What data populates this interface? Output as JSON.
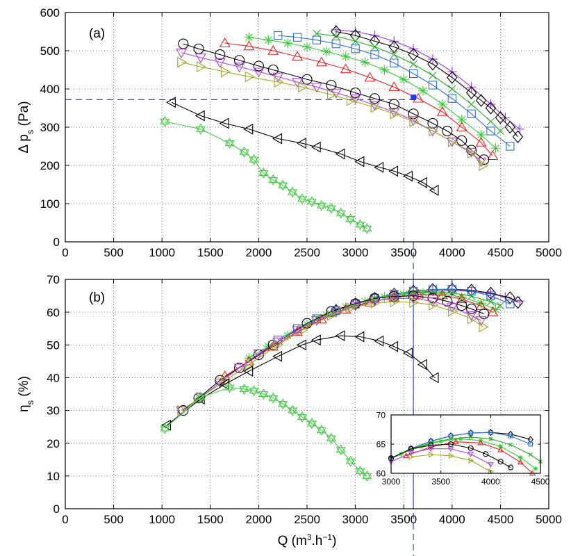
{
  "chart_data": [
    {
      "type": "line",
      "panel_label": "(a)",
      "ylabel": {
        "main": "Δ p",
        "sub": "s",
        "unit": " (Pa)"
      },
      "xlabel": "",
      "xlim": [
        0,
        5000
      ],
      "ylim": [
        0,
        600
      ],
      "xticks": [
        "0",
        "500",
        "1000",
        "1500",
        "2000",
        "2500",
        "3000",
        "3500",
        "4000",
        "4500",
        "5000"
      ],
      "yticks": [
        "0",
        "100",
        "200",
        "300",
        "400",
        "500",
        "600"
      ],
      "grid": true,
      "reference_lines": {
        "x": 3600,
        "y": 372
      },
      "highlight_point": {
        "x": 3600,
        "y": 378,
        "color": "#1a3cff"
      },
      "series": [
        {
          "name": "plus",
          "marker": "plus",
          "color": "#9b30d9",
          "x": [
            2800,
            3000,
            3200,
            3400,
            3600,
            3800,
            4000,
            4200,
            4400,
            4550,
            4700
          ],
          "y": [
            555,
            550,
            540,
            525,
            505,
            478,
            445,
            405,
            360,
            325,
            295
          ]
        },
        {
          "name": "diamond",
          "marker": "diamond",
          "color": "#000000",
          "x": [
            2800,
            3000,
            3200,
            3400,
            3600,
            3800,
            4000,
            4200,
            4300,
            4400,
            4500,
            4600,
            4680
          ],
          "y": [
            550,
            540,
            525,
            510,
            490,
            465,
            430,
            390,
            370,
            350,
            325,
            300,
            275
          ]
        },
        {
          "name": "square",
          "marker": "square",
          "color": "#2a6fdb",
          "x": [
            2200,
            2400,
            2600,
            2800,
            3000,
            3200,
            3400,
            3600,
            3800,
            4000,
            4200,
            4400,
            4600
          ],
          "y": [
            540,
            535,
            528,
            518,
            505,
            490,
            468,
            440,
            410,
            375,
            335,
            290,
            250
          ]
        },
        {
          "name": "cross",
          "marker": "x",
          "color": "#22aa22",
          "x": [
            2600,
            2800,
            3000,
            3200,
            3400,
            3600,
            3800,
            4000,
            4200,
            4400,
            4500
          ],
          "y": [
            545,
            538,
            525,
            510,
            490,
            465,
            435,
            400,
            360,
            315,
            290
          ]
        },
        {
          "name": "asterisk",
          "marker": "asterisk",
          "color": "#33cc33",
          "x": [
            1900,
            2100,
            2300,
            2500,
            2700,
            2900,
            3100,
            3300,
            3500,
            3700,
            3900,
            4100,
            4300,
            4450
          ],
          "y": [
            535,
            528,
            520,
            510,
            498,
            485,
            470,
            450,
            425,
            395,
            360,
            320,
            280,
            245
          ]
        },
        {
          "name": "triangle-up",
          "marker": "triangle-up",
          "color": "#e82020",
          "x": [
            1650,
            1900,
            2150,
            2400,
            2650,
            2900,
            3150,
            3400,
            3650,
            3900,
            4100,
            4300,
            4420
          ],
          "y": [
            520,
            512,
            500,
            485,
            470,
            452,
            430,
            405,
            375,
            340,
            300,
            260,
            225
          ]
        },
        {
          "name": "circle",
          "marker": "circle",
          "color": "#000000",
          "x": [
            1220,
            1380,
            1600,
            1800,
            2000,
            2150,
            2500,
            2750,
            3000,
            3200,
            3400,
            3600,
            3800,
            3950,
            4100,
            4200,
            4330
          ],
          "y": [
            518,
            505,
            490,
            475,
            460,
            450,
            425,
            410,
            390,
            375,
            360,
            335,
            310,
            290,
            265,
            240,
            215
          ]
        },
        {
          "name": "triangle-down",
          "marker": "triangle-down",
          "color": "#b040e0",
          "x": [
            1200,
            1400,
            1600,
            1800,
            2000,
            2200,
            2400,
            2600,
            2800,
            3000,
            3200,
            3400,
            3600,
            3800,
            4000,
            4200,
            4300
          ],
          "y": [
            495,
            482,
            470,
            458,
            445,
            432,
            418,
            405,
            390,
            375,
            358,
            340,
            318,
            290,
            262,
            235,
            210
          ]
        },
        {
          "name": "triangle-right",
          "marker": "triangle-right",
          "color": "#99aa22",
          "x": [
            1200,
            1400,
            1650,
            1900,
            2200,
            2450,
            2750,
            2950,
            3200,
            3400,
            3600,
            3800,
            4000,
            4200,
            4320
          ],
          "y": [
            470,
            458,
            445,
            432,
            418,
            405,
            385,
            370,
            352,
            335,
            315,
            290,
            262,
            232,
            200
          ]
        },
        {
          "name": "triangle-left",
          "marker": "triangle-left",
          "color": "#000000",
          "x": [
            1100,
            1400,
            1650,
            1900,
            2200,
            2450,
            2600,
            2850,
            3050,
            3250,
            3400,
            3550,
            3700,
            3820
          ],
          "y": [
            365,
            330,
            310,
            295,
            270,
            258,
            248,
            230,
            210,
            195,
            185,
            172,
            155,
            135
          ]
        },
        {
          "name": "hexagram",
          "marker": "star",
          "color": "#44cc44",
          "x": [
            1030,
            1400,
            1700,
            1850,
            1950,
            2050,
            2150,
            2250,
            2350,
            2450,
            2550,
            2650,
            2750,
            2850,
            2950,
            3050,
            3120
          ],
          "y": [
            315,
            295,
            258,
            235,
            215,
            180,
            162,
            148,
            130,
            112,
            105,
            95,
            88,
            75,
            60,
            45,
            35
          ]
        }
      ]
    },
    {
      "type": "line",
      "panel_label": "(b)",
      "ylabel": {
        "main": "η",
        "sub": "s",
        "unit": " (%)"
      },
      "xlabel": {
        "main": "Q (m",
        "sup1": "3",
        "mid": ".h",
        "sup2": "−1",
        "end": ")"
      },
      "xlim": [
        0,
        5000
      ],
      "ylim": [
        0,
        70
      ],
      "xticks": [
        "0",
        "500",
        "1000",
        "1500",
        "2000",
        "2500",
        "3000",
        "3500",
        "4000",
        "4500",
        "5000"
      ],
      "yticks": [
        "0",
        "10",
        "20",
        "30",
        "40",
        "50",
        "60",
        "70"
      ],
      "grid": true,
      "reference_lines": {
        "x": 3600
      },
      "series": [
        {
          "name": "plus",
          "marker": "plus",
          "color": "#9b30d9",
          "x": [
            2800,
            3000,
            3200,
            3400,
            3600,
            3800,
            4000,
            4200,
            4400,
            4550,
            4700
          ],
          "y": [
            60.8,
            62.5,
            64.0,
            65.2,
            66.0,
            66.5,
            66.7,
            66.3,
            65.6,
            64.6,
            63.4
          ]
        },
        {
          "name": "diamond",
          "marker": "diamond",
          "color": "#000000",
          "x": [
            2800,
            3000,
            3200,
            3400,
            3600,
            3800,
            4000,
            4200,
            4400,
            4600,
            4680
          ],
          "y": [
            60.5,
            62.5,
            64.2,
            65.5,
            66.4,
            66.9,
            67.0,
            66.7,
            65.8,
            64.4,
            63.0
          ]
        },
        {
          "name": "square",
          "marker": "square",
          "color": "#2a6fdb",
          "x": [
            2200,
            2400,
            2600,
            2800,
            3000,
            3200,
            3400,
            3600,
            3800,
            4000,
            4200,
            4400,
            4600
          ],
          "y": [
            51.5,
            55.0,
            58.0,
            60.5,
            62.5,
            64.2,
            65.5,
            66.4,
            66.9,
            67.0,
            66.4,
            65.0,
            62.5
          ]
        },
        {
          "name": "cross",
          "marker": "x",
          "color": "#22aa22",
          "x": [
            2600,
            2800,
            3000,
            3200,
            3400,
            3600,
            3800,
            4000,
            4200,
            4400,
            4500
          ],
          "y": [
            58.2,
            60.6,
            62.5,
            64.1,
            65.2,
            65.9,
            66.2,
            65.9,
            64.9,
            63.2,
            62.0
          ]
        },
        {
          "name": "asterisk",
          "marker": "asterisk",
          "color": "#33cc33",
          "x": [
            1900,
            2100,
            2300,
            2500,
            2700,
            2900,
            3100,
            3300,
            3500,
            3700,
            3900,
            4100,
            4300,
            4450
          ],
          "y": [
            46.0,
            49.6,
            52.8,
            56.2,
            59.2,
            61.5,
            63.3,
            64.6,
            65.5,
            65.9,
            65.6,
            64.6,
            62.7,
            60.8
          ]
        },
        {
          "name": "triangle-up",
          "marker": "triangle-up",
          "color": "#e82020",
          "x": [
            1650,
            1900,
            2150,
            2400,
            2650,
            2900,
            3150,
            3400,
            3650,
            3900,
            4100,
            4300,
            4420
          ],
          "y": [
            40.5,
            45.0,
            49.5,
            54.0,
            57.8,
            60.8,
            63.0,
            64.5,
            65.4,
            65.2,
            64.0,
            61.9,
            60.0
          ]
        },
        {
          "name": "circle",
          "marker": "circle",
          "color": "#000000",
          "x": [
            1220,
            1380,
            1600,
            1800,
            2000,
            2150,
            2500,
            2750,
            3000,
            3200,
            3400,
            3600,
            3800,
            3950,
            4100,
            4200,
            4330
          ],
          "y": [
            30.0,
            33.8,
            39.2,
            43.0,
            47.0,
            50.0,
            56.6,
            60.2,
            62.6,
            64.2,
            64.8,
            65.0,
            64.3,
            63.3,
            62.0,
            61.0,
            59.5
          ]
        },
        {
          "name": "triangle-down",
          "marker": "triangle-down",
          "color": "#b040e0",
          "x": [
            1200,
            1400,
            1600,
            1800,
            2000,
            2200,
            2400,
            2600,
            2800,
            3000,
            3200,
            3400,
            3600,
            3800,
            4000,
            4200,
            4300
          ],
          "y": [
            30.0,
            34.0,
            38.5,
            43.0,
            47.4,
            51.0,
            54.5,
            57.5,
            60.0,
            62.0,
            63.5,
            64.2,
            64.2,
            63.3,
            61.5,
            59.0,
            57.5
          ]
        },
        {
          "name": "triangle-right",
          "marker": "triangle-right",
          "color": "#99aa22",
          "x": [
            1200,
            1400,
            1650,
            1900,
            2200,
            2450,
            2750,
            2950,
            3200,
            3400,
            3600,
            3800,
            4000,
            4200,
            4320
          ],
          "y": [
            30.0,
            34.0,
            39.0,
            44.0,
            50.0,
            54.5,
            59.0,
            61.3,
            62.8,
            63.2,
            63.0,
            62.2,
            60.3,
            58.0,
            55.5
          ]
        },
        {
          "name": "triangle-left",
          "marker": "triangle-left",
          "color": "#000000",
          "x": [
            1050,
            1400,
            1650,
            1900,
            2200,
            2450,
            2600,
            2850,
            3050,
            3250,
            3400,
            3550,
            3700,
            3820
          ],
          "y": [
            25.5,
            33.5,
            38.0,
            42.0,
            46.5,
            50.0,
            51.5,
            52.8,
            52.5,
            51.2,
            49.5,
            47.5,
            44.0,
            40.0
          ]
        },
        {
          "name": "hexagram",
          "marker": "star",
          "color": "#44cc44",
          "x": [
            1030,
            1400,
            1700,
            1850,
            1950,
            2050,
            2150,
            2250,
            2350,
            2450,
            2550,
            2650,
            2750,
            2850,
            2950,
            3050,
            3120
          ],
          "y": [
            24.5,
            34.0,
            37.0,
            36.5,
            36.0,
            35.0,
            33.8,
            32.0,
            30.0,
            28.0,
            26.0,
            24.0,
            21.5,
            18.0,
            14.5,
            11.5,
            10.0
          ]
        }
      ],
      "inset": {
        "xlim": [
          3000,
          4500
        ],
        "ylim": [
          60,
          70
        ],
        "xticks": [
          "3000",
          "3500",
          "4000",
          "4500"
        ],
        "yticks": [
          "60",
          "65",
          "70"
        ],
        "series_names": [
          "diamond",
          "square",
          "cross",
          "asterisk",
          "triangle-up",
          "circle",
          "triangle-down",
          "triangle-right"
        ]
      }
    }
  ]
}
